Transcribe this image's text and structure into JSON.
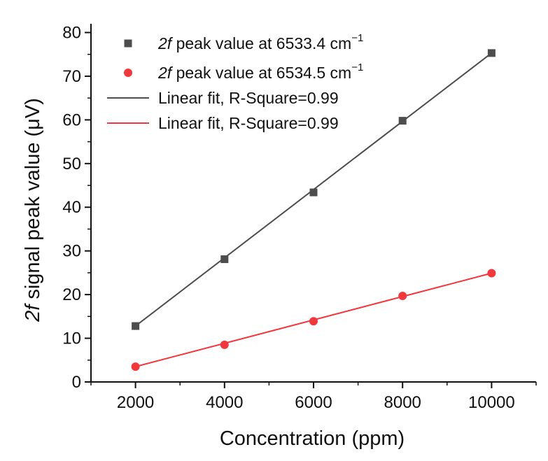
{
  "chart_data": {
    "type": "scatter",
    "xlabel": "Concentration (ppm)",
    "ylabel_italic": "2f",
    "ylabel_rest": " signal peak value (μV)",
    "xlim": [
      1000,
      11000
    ],
    "ylim": [
      0,
      82
    ],
    "xticks": [
      2000,
      4000,
      6000,
      8000,
      10000
    ],
    "xtick_labels": [
      "2000",
      "4000",
      "6000",
      "8000",
      "10000"
    ],
    "yticks": [
      0,
      10,
      20,
      30,
      40,
      50,
      60,
      70,
      80
    ],
    "ytick_labels": [
      "0",
      "10",
      "20",
      "30",
      "40",
      "50",
      "60",
      "70",
      "80"
    ],
    "grid": false,
    "legend_position": "top-left",
    "series": [
      {
        "name": "2f peak value at 6533.4 cm⁻¹",
        "legend_italic": "2f",
        "legend_rest": " peak value at 6533.4 cm",
        "legend_sup": "−1",
        "marker": "square",
        "color": "#4d4d4d",
        "x": [
          2000,
          4000,
          6000,
          8000,
          10000
        ],
        "y": [
          12.8,
          28.1,
          43.4,
          59.8,
          75.3
        ]
      },
      {
        "name": "2f peak value at 6534.5 cm⁻¹",
        "legend_italic": "2f",
        "legend_rest": " peak value at 6534.5 cm",
        "legend_sup": "−1",
        "marker": "circle",
        "color": "#f0383d",
        "x": [
          2000,
          4000,
          6000,
          8000,
          10000
        ],
        "y": [
          3.5,
          8.5,
          13.9,
          19.7,
          24.9
        ]
      }
    ],
    "fits": [
      {
        "name": "Linear fit, R-Square=0.99",
        "color": "#4d4d4d",
        "x": [
          2000,
          10000
        ],
        "y": [
          12.8,
          75.3
        ]
      },
      {
        "name": "Linear fit, R-Square=0.99",
        "color": "#f0383d",
        "x": [
          2000,
          10000
        ],
        "y": [
          3.5,
          24.9
        ]
      }
    ]
  }
}
